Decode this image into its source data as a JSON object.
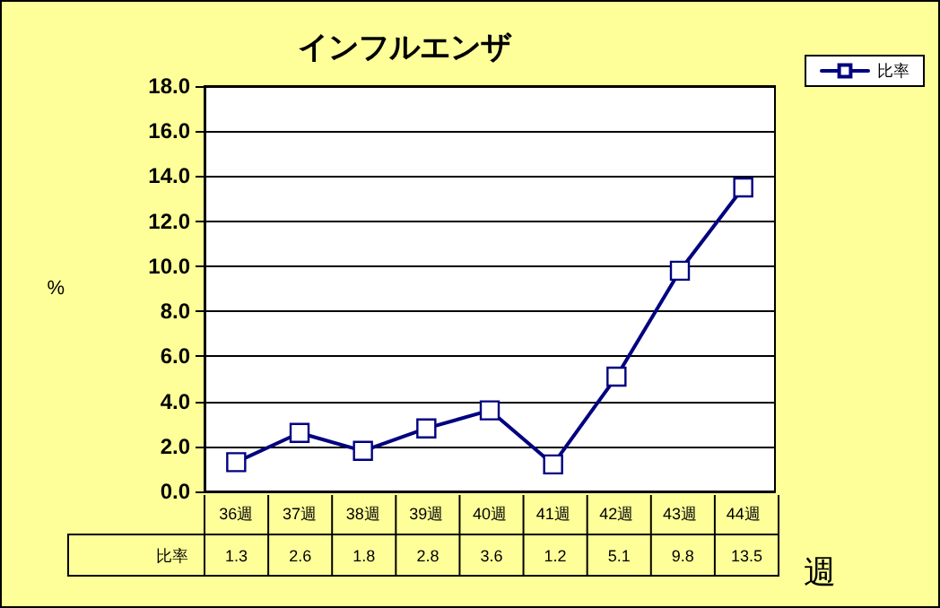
{
  "chart_data": {
    "type": "line",
    "title": "インフルエンザ",
    "ylabel": "%",
    "xlabel": "週",
    "categories": [
      "36週",
      "37週",
      "38週",
      "39週",
      "40週",
      "41週",
      "42週",
      "43週",
      "44週"
    ],
    "series": [
      {
        "name": "比率",
        "color": "#000080",
        "values": [
          1.3,
          2.6,
          1.8,
          2.8,
          3.6,
          1.2,
          5.1,
          9.8,
          13.5
        ]
      }
    ],
    "ylim": [
      0,
      18
    ],
    "yticks": [
      {
        "value": 0,
        "label": "0.0"
      },
      {
        "value": 2,
        "label": "2.0"
      },
      {
        "value": 4,
        "label": "4.0"
      },
      {
        "value": 6,
        "label": "6.0"
      },
      {
        "value": 8,
        "label": "8.0"
      },
      {
        "value": 10,
        "label": "10.0"
      },
      {
        "value": 12,
        "label": "12.0"
      },
      {
        "value": 14,
        "label": "14.0"
      },
      {
        "value": 16,
        "label": "16.0"
      },
      {
        "value": 18,
        "label": "18.0"
      }
    ],
    "grid": "y",
    "legend": "top right",
    "marker": "square",
    "line_style": "solid",
    "data_labels": true
  }
}
